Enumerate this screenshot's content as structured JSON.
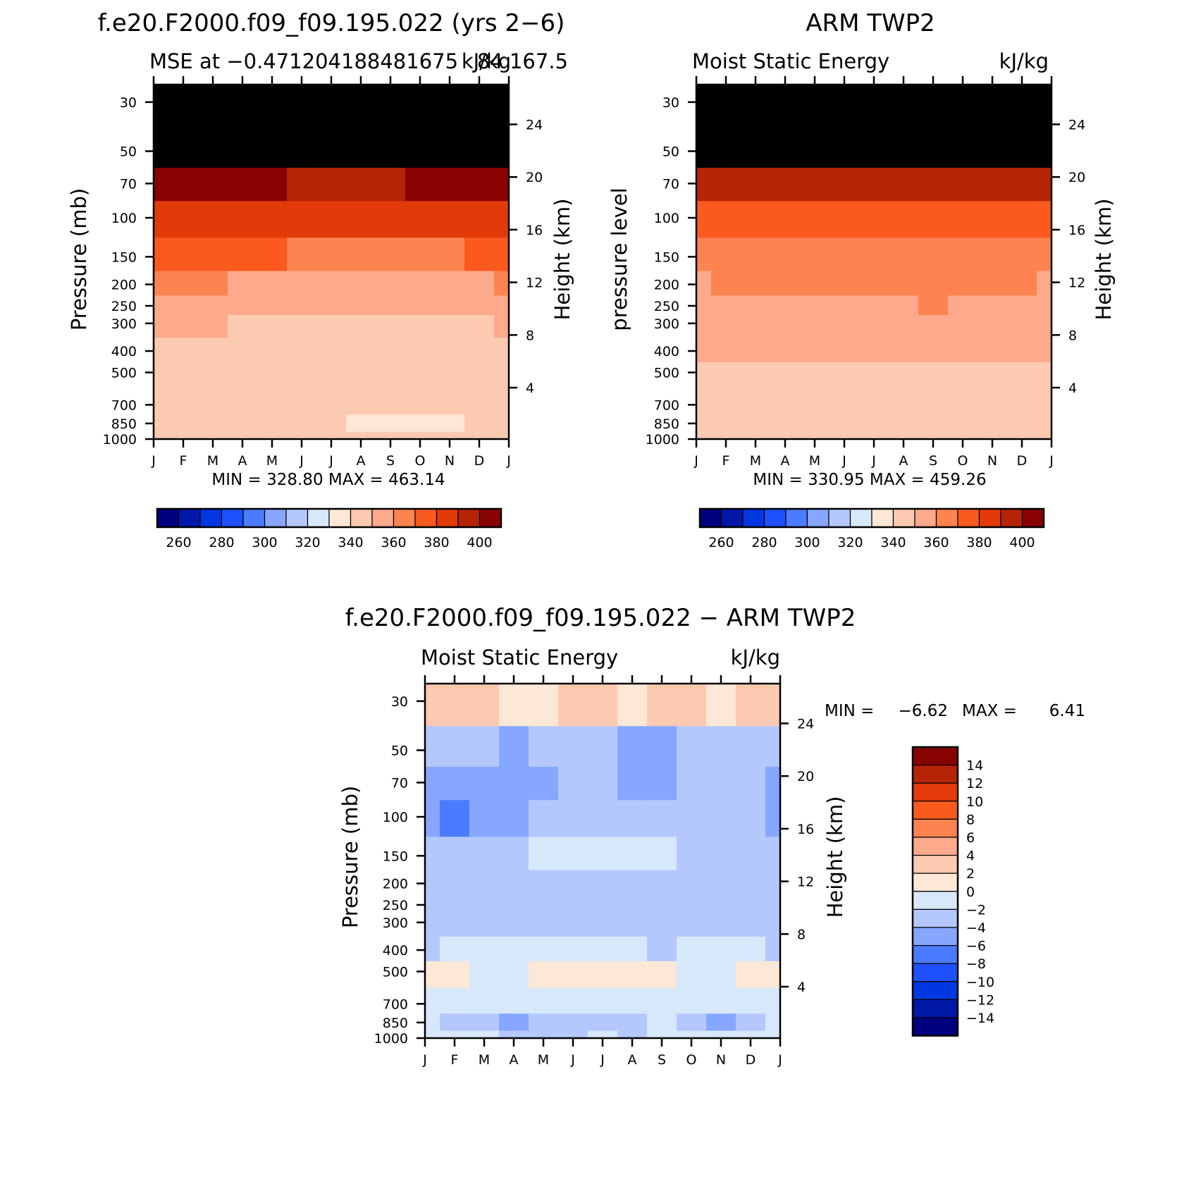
{
  "palette": {
    "ticks": [
      -14,
      -12,
      -10,
      -8,
      -6,
      -4,
      -2,
      0,
      2,
      4,
      6,
      8,
      10,
      12,
      14
    ],
    "colors": [
      "#00007f",
      "#0018a8",
      "#0037e0",
      "#1e50ff",
      "#4b7bff",
      "#87a6ff",
      "#b4c8fe",
      "#d7e8fb",
      "#fde8d8",
      "#fccab0",
      "#fca98c",
      "#fd8350",
      "#fb5a1f",
      "#e23a08",
      "#b52407",
      "#880202"
    ]
  },
  "months": [
    "J",
    "F",
    "M",
    "A",
    "M",
    "J",
    "J",
    "A",
    "S",
    "O",
    "N",
    "D",
    "J"
  ],
  "pressure_ticks": [
    30,
    50,
    70,
    100,
    150,
    200,
    250,
    300,
    400,
    500,
    700,
    850,
    1000
  ],
  "height_ticks": [
    4,
    8,
    12,
    16,
    20,
    24
  ],
  "panels": [
    {
      "id": "model",
      "main_title": "f.e20.F2000.f09_f09.195.022 (yrs 2−6)",
      "left_string": "MSE at −0.471204188481675",
      "center_string": "kJ/kg",
      "right_string": "84 167.5",
      "ylabel": "Pressure (mb)",
      "ylabel_right": "Height (km)",
      "stats": "MIN = 328.80  MAX = 463.14",
      "colorbar_labels": [
        "260",
        "280",
        "300",
        "320",
        "340",
        "360",
        "380",
        "400"
      ]
    },
    {
      "id": "obs",
      "main_title": "ARM TWP2",
      "left_string": "Moist Static Energy",
      "right_string": "kJ/kg",
      "ylabel": "pressure level",
      "ylabel_right": "Height (km)",
      "stats": "MIN = 330.95  MAX = 459.26",
      "colorbar_labels": [
        "260",
        "280",
        "300",
        "320",
        "340",
        "360",
        "380",
        "400"
      ]
    },
    {
      "id": "diff",
      "main_title": "f.e20.F2000.f09_f09.195.022 − ARM TWP2",
      "left_string": "Moist Static Energy",
      "right_string": "kJ/kg",
      "ylabel": "Pressure (mb)",
      "ylabel_right": "Height (km)",
      "stats_min_label": "MIN =",
      "stats_min": "−6.62",
      "stats_max_label": "MAX =",
      "stats_max": "6.41",
      "colorbar_labels": [
        "14",
        "12",
        "10",
        "8",
        "6",
        "4",
        "2",
        "0",
        "−2",
        "−4",
        "−6",
        "−8",
        "−10",
        "−12",
        "−14"
      ]
    }
  ],
  "chart_data": [
    {
      "type": "heatmap",
      "title": "MSE at −0.471204188481675 84 167.5",
      "units": "kJ/kg",
      "x": [
        "J",
        "F",
        "M",
        "A",
        "M",
        "J",
        "J",
        "A",
        "S",
        "O",
        "N",
        "D",
        "J"
      ],
      "y": [
        1000,
        850,
        700,
        500,
        400,
        300,
        250,
        200,
        150,
        100,
        70,
        50,
        30
      ],
      "ylabel": "Pressure (mb)",
      "values": [
        [
          335,
          335,
          335,
          335,
          335,
          335,
          335,
          335,
          335,
          335,
          335,
          335,
          335
        ],
        [
          335,
          335,
          335,
          335,
          334,
          333,
          331,
          328,
          327,
          328,
          329,
          334,
          335
        ],
        [
          335,
          335,
          335,
          335,
          335,
          335,
          335,
          335,
          335,
          335,
          335,
          335,
          335
        ],
        [
          335,
          335,
          335,
          335,
          335,
          335,
          335,
          335,
          335,
          335,
          335,
          335,
          335
        ],
        [
          337,
          337,
          336,
          336,
          335,
          335,
          335,
          335,
          335,
          335,
          335,
          336,
          337
        ],
        [
          341,
          342,
          340,
          338,
          337,
          337,
          337,
          337,
          337,
          336,
          336,
          339,
          341
        ],
        [
          346,
          347,
          345,
          343,
          342,
          341,
          341,
          341,
          341,
          340,
          340,
          344,
          346
        ],
        [
          352,
          353,
          351,
          349,
          348,
          346,
          346,
          346,
          346,
          345,
          345,
          349,
          352
        ],
        [
          365,
          366,
          364,
          362,
          361,
          359,
          359,
          358,
          358,
          357,
          357,
          360,
          365
        ],
        [
          379,
          379,
          378,
          377,
          376,
          375,
          374,
          374,
          374,
          374,
          373,
          375,
          379
        ],
        [
          395,
          394,
          393,
          392,
          391,
          389,
          388,
          389,
          389,
          390,
          390,
          391,
          395
        ],
        [
          425,
          425,
          423,
          422,
          421,
          420,
          419,
          420,
          421,
          421,
          421,
          422,
          425
        ],
        [
          455,
          455,
          455,
          455,
          455,
          455,
          455,
          455,
          455,
          455,
          455,
          455,
          455
        ]
      ],
      "min": 328.8,
      "max": 463.14
    },
    {
      "type": "heatmap",
      "title": "ARM TWP2",
      "subtitle": "Moist Static Energy",
      "units": "kJ/kg",
      "x": [
        "J",
        "F",
        "M",
        "A",
        "M",
        "J",
        "J",
        "A",
        "S",
        "O",
        "N",
        "D",
        "J"
      ],
      "y": [
        1000,
        850,
        700,
        500,
        400,
        300,
        250,
        200,
        150,
        100,
        70,
        50,
        30
      ],
      "ylabel": "pressure level",
      "values": [
        [
          335,
          336,
          336,
          337,
          336,
          336,
          336,
          336,
          336,
          336,
          336,
          336,
          335
        ],
        [
          337,
          337,
          337,
          337,
          337,
          337,
          337,
          337,
          337,
          337,
          337,
          337,
          337
        ],
        [
          337,
          337,
          337,
          337,
          337,
          337,
          337,
          337,
          337,
          337,
          337,
          337,
          337
        ],
        [
          338,
          338,
          338,
          338,
          338,
          338,
          338,
          338,
          338,
          338,
          338,
          338,
          338
        ],
        [
          341,
          341,
          341,
          341,
          341,
          342,
          342,
          342,
          342,
          341,
          341,
          341,
          341
        ],
        [
          343,
          344,
          344,
          344,
          344,
          347,
          347,
          347,
          348,
          346,
          345,
          345,
          343
        ],
        [
          346,
          347,
          347,
          347,
          347,
          349,
          349,
          349,
          350,
          348,
          347,
          347,
          346
        ],
        [
          349,
          350,
          350,
          350,
          350,
          352,
          352,
          352,
          353,
          351,
          350,
          350,
          349
        ],
        [
          356,
          356,
          356,
          356,
          356,
          357,
          357,
          357,
          357,
          356,
          356,
          356,
          356
        ],
        [
          368,
          368,
          367,
          367,
          366,
          366,
          365,
          365,
          365,
          366,
          366,
          367,
          368
        ],
        [
          386,
          386,
          385,
          384,
          383,
          382,
          381,
          381,
          382,
          383,
          384,
          385,
          386
        ],
        [
          412,
          412,
          411,
          410,
          409,
          408,
          407,
          407,
          408,
          409,
          410,
          411,
          412
        ],
        [
          450,
          450,
          450,
          450,
          450,
          450,
          450,
          450,
          450,
          450,
          450,
          450,
          450
        ]
      ],
      "min": 330.95,
      "max": 459.26
    },
    {
      "type": "heatmap",
      "title": "f.e20.F2000.f09_f09.195.022 − ARM TWP2",
      "subtitle": "Moist Static Energy",
      "units": "kJ/kg",
      "x": [
        "J",
        "F",
        "M",
        "A",
        "M",
        "J",
        "J",
        "A",
        "S",
        "O",
        "N",
        "D",
        "J"
      ],
      "y": [
        1000,
        850,
        700,
        500,
        400,
        300,
        250,
        200,
        150,
        100,
        70,
        50,
        30
      ],
      "ylabel": "Pressure (mb)",
      "values": [
        [
          -1,
          -2,
          -2,
          -3,
          -4,
          -3,
          -2,
          -3,
          -2,
          -1,
          -2,
          -2,
          -1
        ],
        [
          -2,
          -3,
          -4,
          -5,
          -4,
          -3,
          -3,
          -4,
          -2,
          -3,
          -5,
          -3,
          -2
        ],
        [
          -1,
          -1,
          -1,
          -1,
          -1,
          -1,
          -1,
          -1,
          -1,
          -1,
          -1,
          -1,
          -1
        ],
        [
          1,
          1,
          -1,
          -1,
          0.5,
          1,
          1,
          1,
          0.5,
          -1,
          -1,
          1,
          1
        ],
        [
          -3,
          -2,
          -2,
          -2,
          -2,
          -2,
          -2,
          -2,
          -3,
          -2,
          -2,
          -2,
          -3
        ],
        [
          -3,
          -3,
          -3,
          -3,
          -3,
          -3,
          -3,
          -3,
          -3,
          -3,
          -3,
          -3,
          -3
        ],
        [
          -3,
          -3,
          -3,
          -3,
          -3,
          -3,
          -3,
          -3,
          -3,
          -3,
          -3,
          -3,
          -3
        ],
        [
          -3,
          -3,
          -3,
          -3,
          -3,
          -3,
          -3,
          -3,
          -3,
          -3,
          -3,
          -3,
          -3
        ],
        [
          -3,
          -3,
          -3,
          -3,
          -2,
          -1,
          -1,
          -1.5,
          -1,
          -3,
          -3,
          -3,
          -3
        ],
        [
          -5,
          -7,
          -5,
          -5,
          -3,
          -3,
          -3,
          -3,
          -3,
          -3,
          -3,
          -4,
          -5
        ],
        [
          -5,
          -6,
          -5,
          -5,
          -5,
          -4,
          -4,
          -5,
          -5,
          -4,
          -3,
          -4,
          -5
        ],
        [
          -3,
          -4,
          -4,
          -6,
          -4,
          -4,
          -4,
          -5,
          -5,
          -4,
          -3,
          -3,
          -3
        ],
        [
          3,
          3,
          3,
          1,
          1,
          2,
          2,
          1,
          2,
          2,
          1,
          3,
          3
        ]
      ],
      "min": -6.62,
      "max": 6.41
    }
  ]
}
